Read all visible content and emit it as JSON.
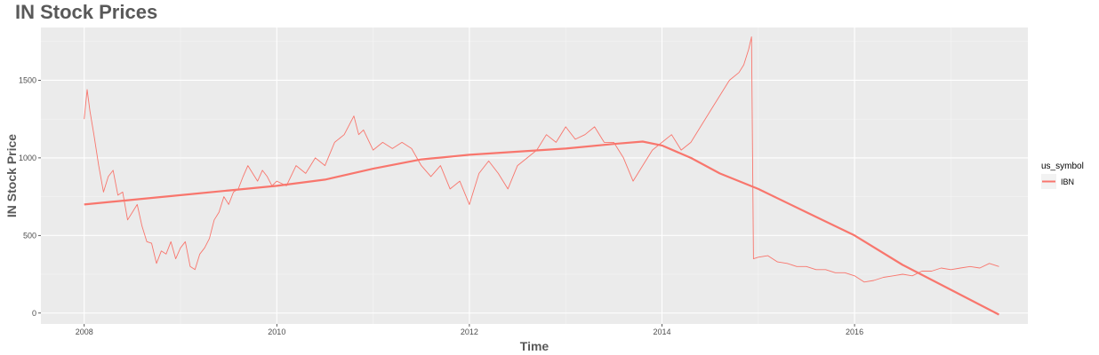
{
  "title": "IN Stock Prices",
  "chart_data": {
    "type": "line",
    "title": "IN Stock Prices",
    "xlabel": "Time",
    "ylabel": "IN Stock Price",
    "xlim": [
      2007.55,
      2017.8
    ],
    "ylim": [
      -70,
      1840
    ],
    "x_ticks": [
      2008,
      2010,
      2012,
      2014,
      2016
    ],
    "y_ticks": [
      0,
      500,
      1000,
      1500
    ],
    "grid": true,
    "legend": {
      "title": "us_symbol",
      "position": "right",
      "entries": [
        "IBN"
      ]
    },
    "series": [
      {
        "name": "IBN",
        "color": "#f8766d",
        "role": "price",
        "x": [
          2008.0,
          2008.03,
          2008.06,
          2008.1,
          2008.15,
          2008.2,
          2008.25,
          2008.3,
          2008.35,
          2008.4,
          2008.45,
          2008.5,
          2008.55,
          2008.6,
          2008.65,
          2008.7,
          2008.75,
          2008.8,
          2008.85,
          2008.9,
          2008.95,
          2009.0,
          2009.05,
          2009.1,
          2009.15,
          2009.2,
          2009.25,
          2009.3,
          2009.35,
          2009.4,
          2009.45,
          2009.5,
          2009.55,
          2009.6,
          2009.65,
          2009.7,
          2009.75,
          2009.8,
          2009.85,
          2009.9,
          2009.95,
          2010.0,
          2010.1,
          2010.2,
          2010.3,
          2010.4,
          2010.5,
          2010.6,
          2010.7,
          2010.8,
          2010.85,
          2010.9,
          2011.0,
          2011.1,
          2011.2,
          2011.3,
          2011.4,
          2011.5,
          2011.6,
          2011.7,
          2011.8,
          2011.9,
          2012.0,
          2012.1,
          2012.2,
          2012.3,
          2012.4,
          2012.5,
          2012.6,
          2012.7,
          2012.8,
          2012.9,
          2013.0,
          2013.1,
          2013.2,
          2013.3,
          2013.4,
          2013.5,
          2013.6,
          2013.7,
          2013.8,
          2013.9,
          2014.0,
          2014.1,
          2014.2,
          2014.3,
          2014.4,
          2014.5,
          2014.6,
          2014.7,
          2014.8,
          2014.85,
          2014.9,
          2014.93,
          2014.95,
          2015.0,
          2015.1,
          2015.2,
          2015.3,
          2015.4,
          2015.5,
          2015.6,
          2015.7,
          2015.8,
          2015.9,
          2016.0,
          2016.1,
          2016.2,
          2016.3,
          2016.4,
          2016.5,
          2016.6,
          2016.7,
          2016.8,
          2016.9,
          2017.0,
          2017.1,
          2017.2,
          2017.3,
          2017.4,
          2017.5
        ],
        "values": [
          1250,
          1440,
          1300,
          1150,
          950,
          780,
          880,
          920,
          760,
          780,
          600,
          650,
          700,
          560,
          460,
          450,
          320,
          400,
          380,
          460,
          350,
          420,
          460,
          300,
          280,
          380,
          420,
          480,
          600,
          650,
          750,
          700,
          780,
          800,
          880,
          950,
          900,
          850,
          920,
          880,
          820,
          850,
          820,
          950,
          900,
          1000,
          950,
          1100,
          1150,
          1270,
          1150,
          1180,
          1050,
          1100,
          1060,
          1100,
          1060,
          950,
          880,
          950,
          800,
          850,
          700,
          900,
          980,
          900,
          800,
          950,
          1000,
          1050,
          1150,
          1100,
          1200,
          1120,
          1150,
          1200,
          1100,
          1100,
          1000,
          850,
          950,
          1050,
          1100,
          1150,
          1050,
          1100,
          1200,
          1300,
          1400,
          1500,
          1550,
          1600,
          1700,
          1780,
          350,
          360,
          370,
          330,
          320,
          300,
          300,
          280,
          280,
          260,
          260,
          240,
          200,
          210,
          230,
          240,
          250,
          240,
          270,
          270,
          290,
          280,
          290,
          300,
          290,
          320,
          300
        ]
      },
      {
        "name": "IBN",
        "color": "#f8766d",
        "role": "smooth trend",
        "x": [
          2008.0,
          2008.5,
          2009.0,
          2009.5,
          2010.0,
          2010.5,
          2011.0,
          2011.5,
          2012.0,
          2012.5,
          2013.0,
          2013.5,
          2013.8,
          2014.0,
          2014.3,
          2014.6,
          2015.0,
          2015.5,
          2016.0,
          2016.5,
          2017.0,
          2017.5
        ],
        "values": [
          700,
          730,
          760,
          790,
          820,
          860,
          930,
          990,
          1020,
          1040,
          1060,
          1090,
          1105,
          1080,
          1000,
          900,
          800,
          650,
          500,
          310,
          150,
          -10
        ]
      }
    ]
  }
}
